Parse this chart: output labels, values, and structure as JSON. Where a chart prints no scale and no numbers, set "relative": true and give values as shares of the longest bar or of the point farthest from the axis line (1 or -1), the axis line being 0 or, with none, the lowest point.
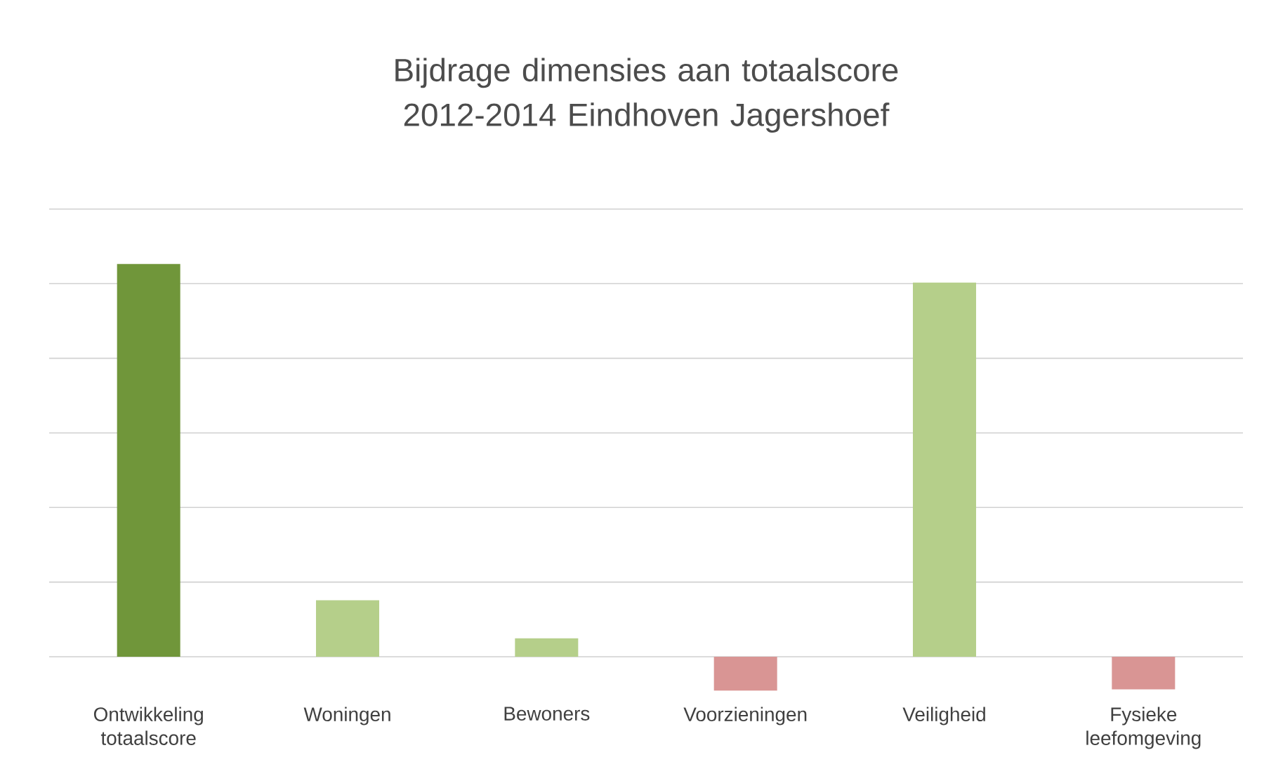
{
  "chart_data": {
    "type": "bar",
    "title": "Bijdrage dimensies aan totaalscore 2012-2014 Eindhoven Jagershoef",
    "categories": [
      "Ontwikkeling totaalscore",
      "Woningen",
      "Bewoners",
      "Voorzieningen",
      "Veiligheid",
      "Fysieke leefomgeving"
    ],
    "values": [
      1,
      0.144,
      0.047,
      -0.086,
      0.953,
      -0.083
    ],
    "colors": [
      "#70963a",
      "#b5cf8a",
      "#b5cf8a",
      "#d99594",
      "#b5cf8a",
      "#d99594"
    ],
    "relative": true,
    "grid": "y"
  }
}
